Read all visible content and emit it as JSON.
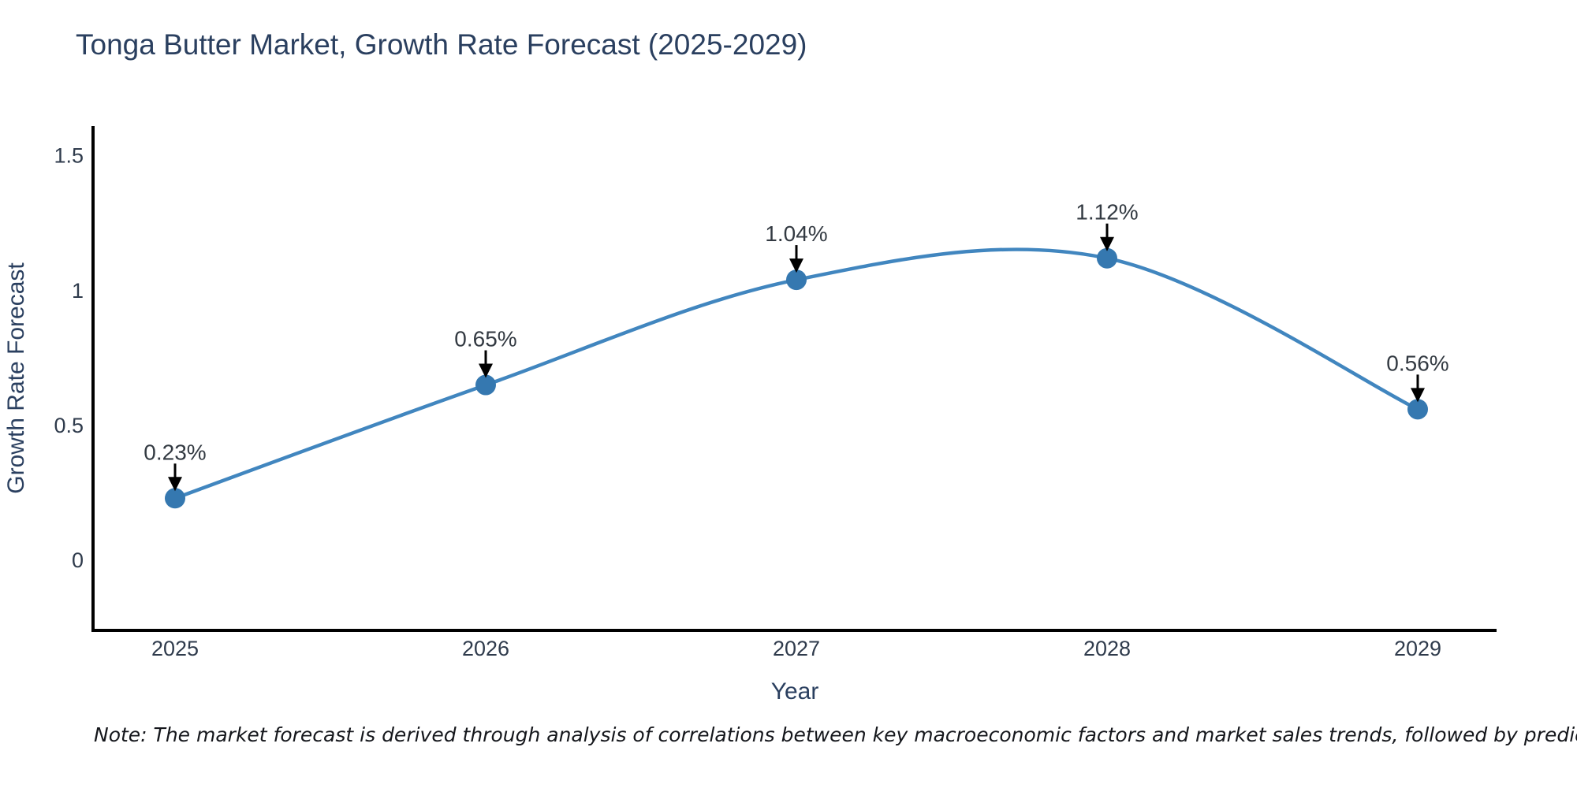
{
  "header": {
    "title": "Tonga Butter Market, Growth Rate Forecast (2025-2029)"
  },
  "chart_data": {
    "type": "line",
    "title": "Tonga Butter Market, Growth Rate Forecast (2025-2029)",
    "x": [
      "2025",
      "2026",
      "2027",
      "2028",
      "2029"
    ],
    "values": [
      0.23,
      0.65,
      1.04,
      1.12,
      0.56
    ],
    "point_labels": [
      "0.23%",
      "0.65%",
      "1.04%",
      "1.12%",
      "0.56%"
    ],
    "xlabel": "Year",
    "ylabel": "Growth Rate Forecast",
    "yticks": [
      0,
      0.5,
      1,
      1.5
    ],
    "ytick_labels": [
      "0",
      "0.5",
      "1",
      "1.5"
    ],
    "ylim": [
      -0.26,
      1.61
    ],
    "grid": false,
    "legend": "none",
    "smooth": true,
    "line_color": "#4186bf",
    "marker_color": "#3578b0",
    "arrow_color": "#000000",
    "annotation_color": "#333a42",
    "tick_color": "#2f3b4c",
    "axis_color": "#000000",
    "axis_title_color": "#2a3f5f"
  },
  "footer": {
    "note": "Note: The market forecast is derived through analysis of correlations between key macroeconomic factors and market sales trends, followed by predictive modeling to project future sales"
  }
}
